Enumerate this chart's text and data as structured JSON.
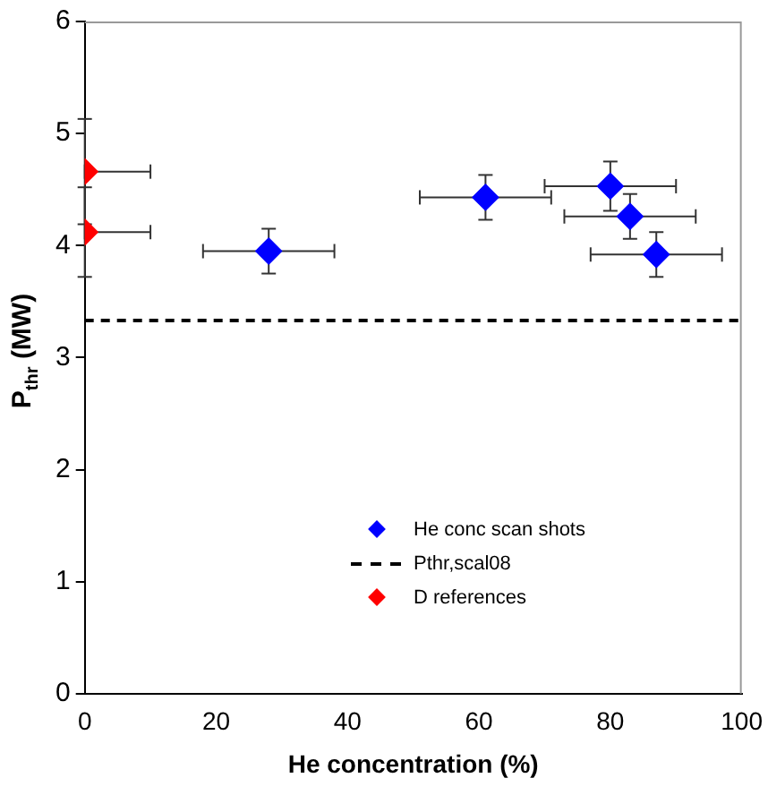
{
  "chart_data": {
    "type": "scatter",
    "xlabel": "He concentration (%)",
    "ylabel": "P$_{thr}$ (MW)",
    "xlim": [
      0,
      100
    ],
    "xticks": [
      0,
      20,
      40,
      60,
      80,
      100
    ],
    "ylim": [
      0,
      6
    ],
    "yticks": [
      0,
      1,
      2,
      3,
      4,
      5,
      6
    ],
    "grid": false,
    "legend": "bottom right",
    "marker": "diamond",
    "series": [
      {
        "name": "He conc scan shots",
        "color": "#0000ff",
        "x": [
          28,
          61,
          80,
          83,
          87
        ],
        "values": [
          3.95,
          4.43,
          4.53,
          4.26,
          3.92
        ],
        "errors": [
          0.2,
          0.2,
          0.22,
          0.2,
          0.2
        ],
        "xerrors": [
          10,
          10,
          10,
          10,
          10
        ]
      },
      {
        "name": "Pthr,scal08",
        "type": "line",
        "color": "#000000",
        "line_style": "dashed",
        "marker": "none",
        "x": [
          0,
          100
        ],
        "values": [
          3.33,
          3.33
        ]
      },
      {
        "name": "D references",
        "color": "#ff0000",
        "x": [
          0,
          0
        ],
        "values": [
          4.66,
          4.12
        ],
        "errors": [
          0.47,
          0.4
        ],
        "xerrors": [
          [
            0,
            10
          ],
          [
            0,
            10
          ]
        ]
      }
    ]
  }
}
